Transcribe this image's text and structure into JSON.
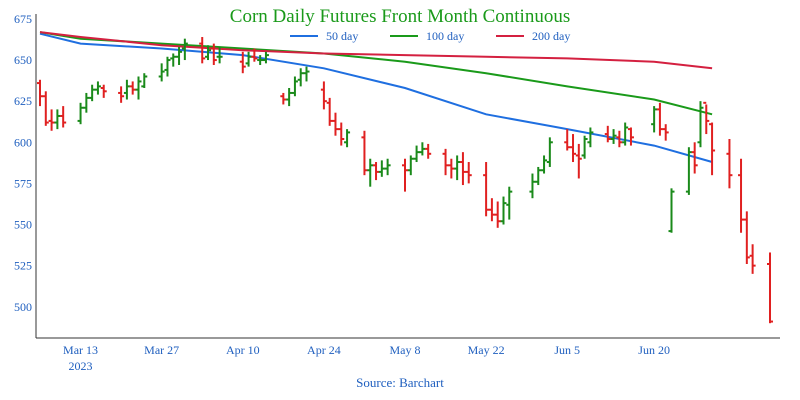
{
  "chart_data": {
    "type": "line",
    "title": "Corn Daily Futures Front Month Continuous",
    "source": "Source: Barchart",
    "yticks": [
      500,
      525,
      550,
      575,
      600,
      625,
      650,
      675
    ],
    "ylim": [
      481,
      678
    ],
    "x_start": "2023-03-06",
    "x_end": "2023-06-30",
    "xticks": [
      {
        "date": "2023-03-13",
        "label": "Mar 13",
        "sublabel": "2023"
      },
      {
        "date": "2023-03-27",
        "label": "Mar 27",
        "sublabel": ""
      },
      {
        "date": "2023-04-10",
        "label": "Apr 10",
        "sublabel": ""
      },
      {
        "date": "2023-04-24",
        "label": "Apr 24",
        "sublabel": ""
      },
      {
        "date": "2023-05-08",
        "label": "May 8",
        "sublabel": ""
      },
      {
        "date": "2023-05-22",
        "label": "May 22",
        "sublabel": ""
      },
      {
        "date": "2023-06-05",
        "label": "Jun 5",
        "sublabel": ""
      },
      {
        "date": "2023-06-20",
        "label": "Jun 20",
        "sublabel": ""
      }
    ],
    "colors": {
      "up": "#1a8a1a",
      "down": "#e02020",
      "ma50": "#1f6fe0",
      "ma100": "#1a9a1a",
      "ma200": "#d42040",
      "axis": "#333333",
      "text": "#1f5fbf",
      "title": "#1a9a1a"
    },
    "moving_averages": [
      {
        "name": "50 day",
        "color": "#1f6fe0",
        "points": [
          [
            "2023-03-06",
            666
          ],
          [
            "2023-03-13",
            660
          ],
          [
            "2023-03-27",
            657
          ],
          [
            "2023-04-10",
            653
          ],
          [
            "2023-04-24",
            645
          ],
          [
            "2023-05-08",
            633
          ],
          [
            "2023-05-22",
            617
          ],
          [
            "2023-06-05",
            608
          ],
          [
            "2023-06-20",
            598
          ],
          [
            "2023-06-30",
            588
          ]
        ]
      },
      {
        "name": "100 day",
        "color": "#1a9a1a",
        "points": [
          [
            "2023-03-06",
            667
          ],
          [
            "2023-03-13",
            663
          ],
          [
            "2023-03-27",
            660
          ],
          [
            "2023-04-10",
            657
          ],
          [
            "2023-04-24",
            654
          ],
          [
            "2023-05-08",
            649
          ],
          [
            "2023-05-22",
            642
          ],
          [
            "2023-06-05",
            634
          ],
          [
            "2023-06-20",
            626
          ],
          [
            "2023-06-30",
            617
          ]
        ]
      },
      {
        "name": "200 day",
        "color": "#d42040",
        "points": [
          [
            "2023-03-06",
            667
          ],
          [
            "2023-03-13",
            664
          ],
          [
            "2023-03-27",
            659
          ],
          [
            "2023-04-10",
            656
          ],
          [
            "2023-04-24",
            654
          ],
          [
            "2023-05-08",
            653
          ],
          [
            "2023-05-22",
            652
          ],
          [
            "2023-06-05",
            651
          ],
          [
            "2023-06-20",
            649
          ],
          [
            "2023-06-30",
            645
          ]
        ]
      }
    ],
    "ohlc": [
      [
        "2023-03-06",
        636,
        638,
        622,
        628
      ],
      [
        "2023-03-07",
        628,
        631,
        610,
        612
      ],
      [
        "2023-03-08",
        613,
        620,
        607,
        612
      ],
      [
        "2023-03-09",
        612,
        620,
        608,
        616
      ],
      [
        "2023-03-10",
        616,
        622,
        609,
        612
      ],
      [
        "2023-03-13",
        613,
        624,
        611,
        621
      ],
      [
        "2023-03-14",
        621,
        630,
        618,
        627
      ],
      [
        "2023-03-15",
        627,
        635,
        625,
        632
      ],
      [
        "2023-03-16",
        632,
        637,
        629,
        634
      ],
      [
        "2023-03-17",
        633,
        635,
        627,
        631
      ],
      [
        "2023-03-20",
        630,
        634,
        624,
        628
      ],
      [
        "2023-03-21",
        630,
        638,
        626,
        634
      ],
      [
        "2023-03-22",
        634,
        637,
        629,
        632
      ],
      [
        "2023-03-23",
        632,
        640,
        626,
        637
      ],
      [
        "2023-03-24",
        634,
        642,
        633,
        640
      ],
      [
        "2023-03-27",
        640,
        648,
        637,
        643
      ],
      [
        "2023-03-28",
        644,
        652,
        640,
        650
      ],
      [
        "2023-03-29",
        651,
        654,
        646,
        652
      ],
      [
        "2023-03-30",
        652,
        658,
        647,
        655
      ],
      [
        "2023-03-31",
        657,
        663,
        650,
        660
      ],
      [
        "2023-04-03",
        660,
        664,
        648,
        651
      ],
      [
        "2023-04-04",
        652,
        659,
        650,
        656
      ],
      [
        "2023-04-05",
        657,
        660,
        647,
        650
      ],
      [
        "2023-04-06",
        652,
        658,
        648,
        652
      ],
      [
        "2023-04-10",
        649,
        655,
        642,
        646
      ],
      [
        "2023-04-11",
        648,
        655,
        646,
        652
      ],
      [
        "2023-04-12",
        652,
        657,
        649,
        651
      ],
      [
        "2023-04-13",
        650,
        653,
        647,
        650
      ],
      [
        "2023-04-14",
        650,
        655,
        648,
        653
      ],
      [
        "2023-04-17",
        628,
        630,
        623,
        626
      ],
      [
        "2023-04-18",
        626,
        633,
        622,
        630
      ],
      [
        "2023-04-19",
        630,
        640,
        628,
        637
      ],
      [
        "2023-04-20",
        638,
        645,
        634,
        642
      ],
      [
        "2023-04-21",
        642,
        646,
        637,
        643
      ],
      [
        "2023-04-24",
        632,
        637,
        620,
        625
      ],
      [
        "2023-04-25",
        624,
        627,
        610,
        613
      ],
      [
        "2023-04-26",
        613,
        618,
        604,
        608
      ],
      [
        "2023-04-27",
        608,
        612,
        598,
        602
      ],
      [
        "2023-04-28",
        600,
        608,
        597,
        606
      ],
      [
        "2023-05-01",
        603,
        607,
        580,
        583
      ],
      [
        "2023-05-02",
        583,
        590,
        573,
        586
      ],
      [
        "2023-05-03",
        586,
        588,
        577,
        582
      ],
      [
        "2023-05-04",
        582,
        589,
        579,
        584
      ],
      [
        "2023-05-05",
        584,
        590,
        580,
        586
      ],
      [
        "2023-05-08",
        586,
        590,
        570,
        583
      ],
      [
        "2023-05-09",
        583,
        592,
        580,
        590
      ],
      [
        "2023-05-10",
        590,
        598,
        588,
        594
      ],
      [
        "2023-05-11",
        594,
        600,
        592,
        596
      ],
      [
        "2023-05-12",
        596,
        599,
        590,
        593
      ],
      [
        "2023-05-15",
        593,
        596,
        580,
        586
      ],
      [
        "2023-05-16",
        586,
        590,
        578,
        584
      ],
      [
        "2023-05-17",
        584,
        592,
        577,
        588
      ],
      [
        "2023-05-18",
        588,
        594,
        574,
        582
      ],
      [
        "2023-05-19",
        582,
        588,
        575,
        580
      ],
      [
        "2023-05-22",
        580,
        588,
        555,
        559
      ],
      [
        "2023-05-23",
        559,
        566,
        552,
        556
      ],
      [
        "2023-05-24",
        556,
        564,
        548,
        552
      ],
      [
        "2023-05-25",
        552,
        567,
        550,
        563
      ],
      [
        "2023-05-26",
        562,
        573,
        553,
        570
      ],
      [
        "2023-05-30",
        570,
        581,
        566,
        576
      ],
      [
        "2023-05-31",
        576,
        585,
        574,
        583
      ],
      [
        "2023-06-01",
        583,
        592,
        581,
        589
      ],
      [
        "2023-06-02",
        588,
        603,
        585,
        600
      ],
      [
        "2023-06-05",
        600,
        608,
        595,
        597
      ],
      [
        "2023-06-06",
        597,
        605,
        588,
        593
      ],
      [
        "2023-06-07",
        592,
        599,
        578,
        590
      ],
      [
        "2023-06-08",
        592,
        604,
        590,
        602
      ],
      [
        "2023-06-09",
        600,
        609,
        597,
        606
      ],
      [
        "2023-06-12",
        605,
        610,
        600,
        602
      ],
      [
        "2023-06-13",
        602,
        608,
        599,
        604
      ],
      [
        "2023-06-14",
        603,
        607,
        597,
        600
      ],
      [
        "2023-06-15",
        600,
        612,
        598,
        609
      ],
      [
        "2023-06-16",
        608,
        609,
        598,
        603
      ],
      [
        "2023-06-20",
        611,
        622,
        606,
        620
      ],
      [
        "2023-06-21",
        620,
        624,
        604,
        608
      ],
      [
        "2023-06-22",
        608,
        611,
        601,
        606
      ],
      [
        "2023-06-23",
        546,
        572,
        545,
        570
      ],
      [
        "2023-06-26",
        570,
        597,
        568,
        594
      ],
      [
        "2023-06-27",
        594,
        600,
        581,
        586
      ],
      [
        "2023-06-28",
        600,
        625,
        597,
        621
      ],
      [
        "2023-06-29",
        624,
        623,
        605,
        613
      ],
      [
        "2023-06-30",
        611,
        612,
        580,
        595
      ],
      [
        "2023-07-03",
        593,
        602,
        572,
        580
      ],
      [
        "2023-07-05",
        580,
        590,
        545,
        553
      ],
      [
        "2023-07-06",
        553,
        558,
        526,
        530
      ],
      [
        "2023-07-07",
        531,
        538,
        520,
        525
      ],
      [
        "2023-07-10",
        526,
        533,
        490,
        491
      ]
    ]
  }
}
